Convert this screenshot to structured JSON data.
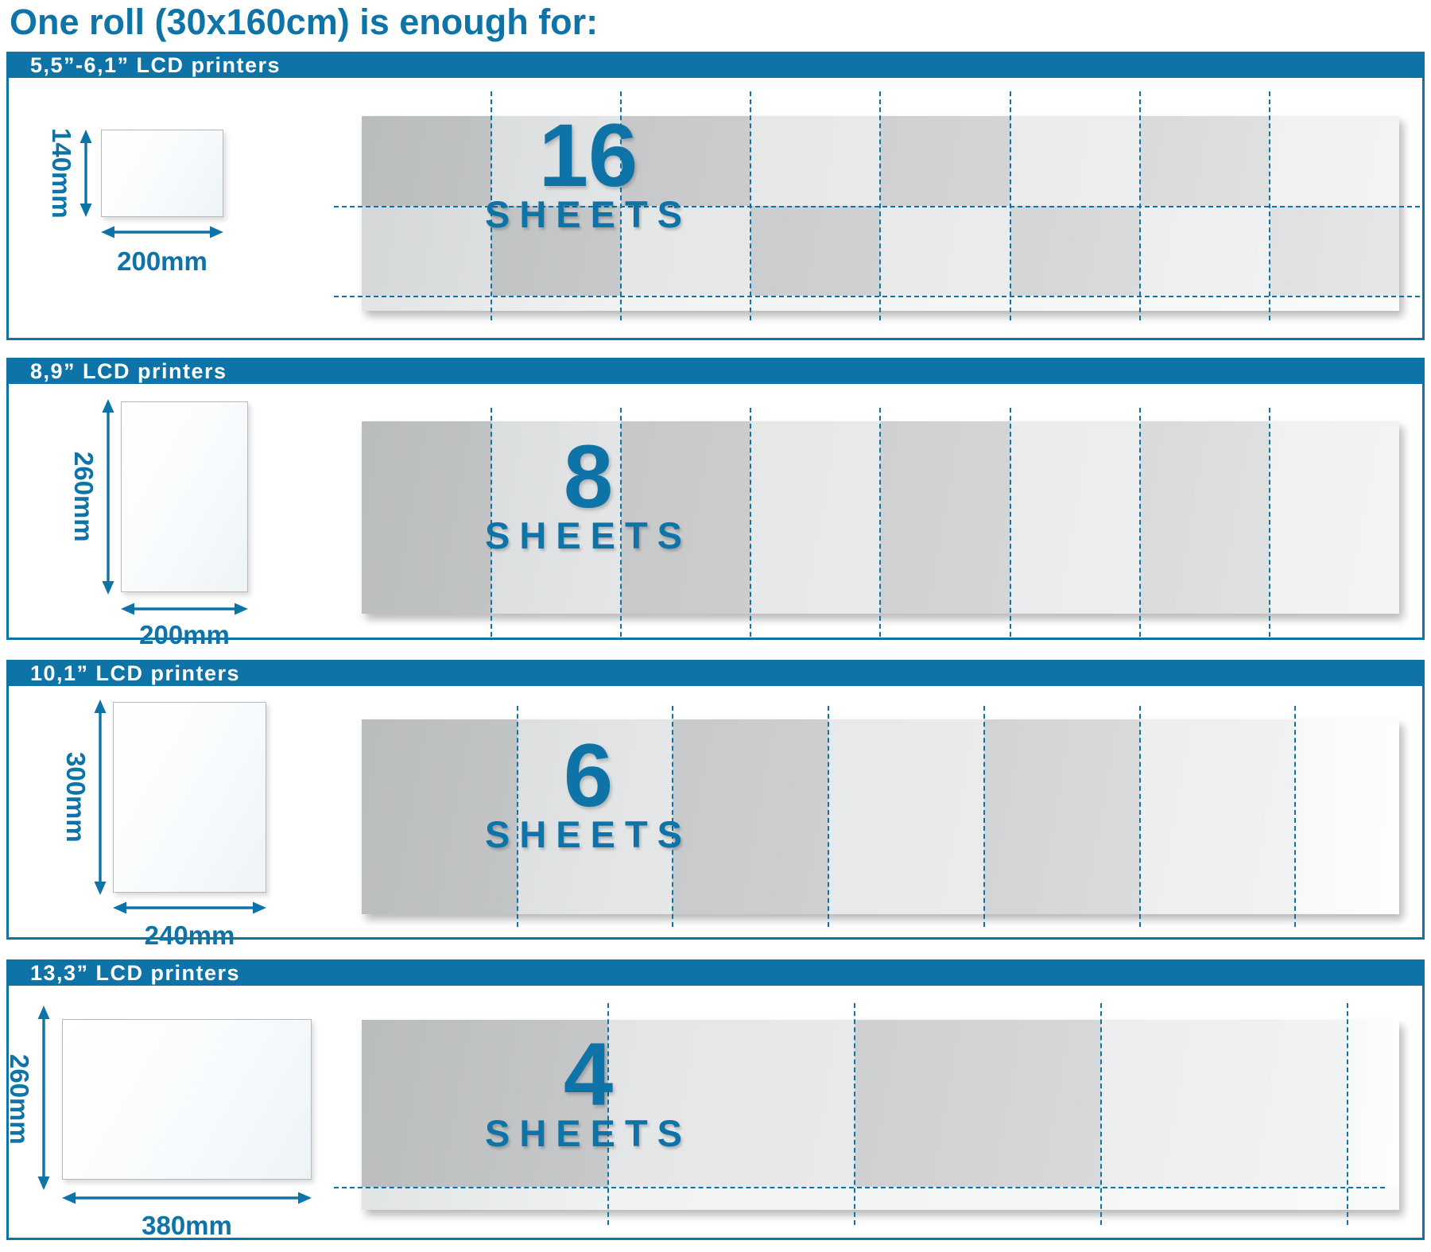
{
  "title": "One roll (30x160cm) is enough for:",
  "sheets_word": "SHEETS",
  "colors": {
    "blue": "#0e73a7",
    "cell_dark": "#c7c9ca",
    "cell_light": "#e4e6e7",
    "leftover": "#f1f3f3",
    "sheet_border": "#b7babb",
    "background": "#ffffff",
    "header_text": "#ffffff"
  },
  "sections": [
    {
      "header": "5,5”-6,1” LCD printers",
      "sheets_count": "16",
      "sheet_width_label": "200mm",
      "sheet_height_label": "140mm",
      "sheet_width_mm": 200,
      "sheet_height_mm": 140,
      "grid_cols": 8,
      "grid_rows": 2
    },
    {
      "header": "8,9” LCD printers",
      "sheets_count": "8",
      "sheet_width_label": "200mm",
      "sheet_height_label": "260mm",
      "sheet_width_mm": 200,
      "sheet_height_mm": 260,
      "grid_cols": 8,
      "grid_rows": 1
    },
    {
      "header": "10,1” LCD printers",
      "sheets_count": "6",
      "sheet_width_label": "240mm",
      "sheet_height_label": "300mm",
      "sheet_width_mm": 240,
      "sheet_height_mm": 300,
      "grid_cols": 6,
      "grid_rows": 1
    },
    {
      "header": "13,3” LCD printers",
      "sheets_count": "4",
      "sheet_width_label": "380mm",
      "sheet_height_label": "260mm",
      "sheet_width_mm": 380,
      "sheet_height_mm": 260,
      "grid_cols": 4,
      "grid_rows": 1
    }
  ]
}
